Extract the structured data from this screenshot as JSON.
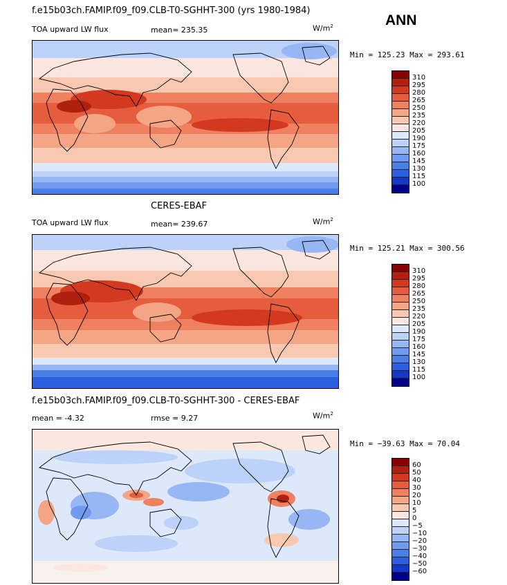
{
  "season": "ANN",
  "colors": {
    "main": [
      "#00008b",
      "#1537c7",
      "#2c5fdd",
      "#4a7fe8",
      "#6f9aef",
      "#97b7f4",
      "#bcd2f8",
      "#dde8fb",
      "#fbe7df",
      "#f8c8b0",
      "#f4a585",
      "#ef8160",
      "#e55d3c",
      "#d3391f",
      "#b0200f",
      "#8b0000"
    ],
    "diff": [
      "#00008b",
      "#1537c7",
      "#2c5fdd",
      "#4a7fe8",
      "#6f9aef",
      "#97b7f4",
      "#bcd2f8",
      "#dde8fb",
      "#fbe7df",
      "#f8c8b0",
      "#f4a585",
      "#ef8160",
      "#e55d3c",
      "#d3391f",
      "#b0200f",
      "#8b0000"
    ]
  },
  "panels": [
    {
      "title": "f.e15b03ch.FAMIP.f09_f09.CLB-T0-SGHHT-300 (yrs 1980-1984)",
      "left_label": "TOA upward LW flux",
      "mid_label": "mean= 235.35",
      "units": "W/m",
      "units_exp": "2",
      "minmax": "Min = 125.23 Max = 293.61",
      "kind": "main",
      "levels": [
        "310",
        "295",
        "280",
        "265",
        "250",
        "235",
        "220",
        "205",
        "190",
        "175",
        "160",
        "145",
        "130",
        "115",
        "100"
      ]
    },
    {
      "title": "CERES-EBAF",
      "left_label": "TOA upward LW flux",
      "mid_label": "mean= 239.67",
      "units": "W/m",
      "units_exp": "2",
      "minmax": "Min = 125.21 Max = 300.56",
      "kind": "main",
      "levels": [
        "310",
        "295",
        "280",
        "265",
        "250",
        "235",
        "220",
        "205",
        "190",
        "175",
        "160",
        "145",
        "130",
        "115",
        "100"
      ]
    },
    {
      "title": "f.e15b03ch.FAMIP.f09_f09.CLB-T0-SGHHT-300 - CERES-EBAF",
      "left_label": "mean =   -4.32",
      "mid_label": "rmse =    9.27",
      "units": "W/m",
      "units_exp": "2",
      "minmax": "Min = −39.63 Max =  70.04",
      "kind": "diff",
      "levels": [
        "60",
        "50",
        "40",
        "30",
        "20",
        "10",
        "5",
        "0",
        "−5",
        "−10",
        "−20",
        "−30",
        "−40",
        "−50",
        "−60"
      ]
    }
  ],
  "chart_data": [
    {
      "type": "heatmap",
      "title": "f.e15b03ch.FAMIP.f09_f09.CLB-T0-SGHHT-300 (yrs 1980-1984)",
      "variable": "TOA upward LW flux",
      "units": "W/m2",
      "mean": 235.35,
      "min": 125.23,
      "max": 293.61,
      "contour_levels": [
        100,
        115,
        130,
        145,
        160,
        175,
        190,
        205,
        220,
        235,
        250,
        265,
        280,
        295,
        310
      ]
    },
    {
      "type": "heatmap",
      "title": "CERES-EBAF",
      "variable": "TOA upward LW flux",
      "units": "W/m2",
      "mean": 239.67,
      "min": 125.21,
      "max": 300.56,
      "contour_levels": [
        100,
        115,
        130,
        145,
        160,
        175,
        190,
        205,
        220,
        235,
        250,
        265,
        280,
        295,
        310
      ]
    },
    {
      "type": "heatmap",
      "title": "f.e15b03ch.FAMIP.f09_f09.CLB-T0-SGHHT-300 - CERES-EBAF",
      "units": "W/m2",
      "mean": -4.32,
      "rmse": 9.27,
      "min": -39.63,
      "max": 70.04,
      "contour_levels": [
        -60,
        -50,
        -40,
        -30,
        -20,
        -10,
        -5,
        0,
        5,
        10,
        20,
        30,
        40,
        50,
        60
      ]
    }
  ]
}
